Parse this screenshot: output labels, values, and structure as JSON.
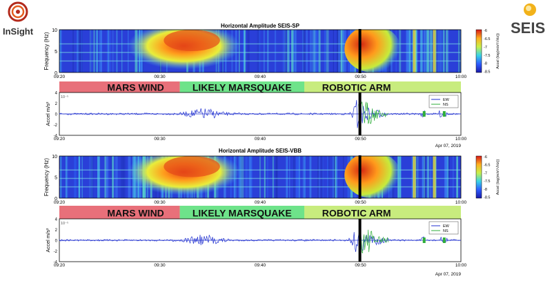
{
  "logos": {
    "insight": "InSight",
    "seis": "SEIS"
  },
  "figures": [
    {
      "spectrogram_title": "Horizontal Amplitude SEIS-SP",
      "ylabel": "Frequency (Hz)",
      "colorbar_label": "Accel (log(m/s²/√Hz))",
      "colorbar_ticks": [
        "-6",
        "-6.5",
        "-7",
        "-7.5",
        "-8",
        "-8.5"
      ],
      "date": "Apr 07, 2019",
      "trace_ylabel": "Accel m/s²",
      "trace_scale": "10⁻⁵"
    },
    {
      "spectrogram_title": "Horizontal Amplitude SEIS-VBB",
      "ylabel": "Frequency (Hz)",
      "colorbar_label": "Accel (log(m/s²/√Hz))",
      "colorbar_ticks": [
        "-6",
        "-6.5",
        "-7",
        "-7.5",
        "-8",
        "-8.5"
      ],
      "date": "Apr 07, 2019",
      "trace_ylabel": "Accel m/s²",
      "trace_scale": "10⁻⁵"
    }
  ],
  "labels": {
    "mars_wind": "MARS WIND",
    "likely_marsquake": "LIKELY MARSQUAKE",
    "robotic_arm": "ROBOTIC ARM",
    "mars_wind_color": "#e8707a",
    "marsquake_color": "#6ee38a",
    "robotic_arm_color": "#c8ec7e"
  },
  "legend": [
    "EW",
    "NS"
  ],
  "chart_data": [
    {
      "type": "heatmap",
      "title": "Horizontal Amplitude SEIS-SP",
      "xlabel": "",
      "ylabel": "Frequency (Hz)",
      "x_ticks": [
        "09:20",
        "09:30",
        "09:40",
        "09:50",
        "10:00"
      ],
      "y_ticks": [
        0,
        5,
        10
      ],
      "ylim": [
        0,
        10
      ],
      "colorbar": {
        "label": "Accel (log(m/s²/√Hz))",
        "range": [
          -8.5,
          -6
        ]
      },
      "events": [
        {
          "name": "MARS WIND",
          "start": "09:20",
          "end": "09:32"
        },
        {
          "name": "LIKELY MARSQUAKE",
          "start": "09:32",
          "end": "09:45"
        },
        {
          "name": "ROBOTIC ARM",
          "start": "09:45",
          "end": "10:00"
        }
      ]
    },
    {
      "type": "line",
      "title": "",
      "ylabel": "Accel m/s²",
      "x_ticks": [
        "09:20",
        "09:30",
        "09:40",
        "09:50",
        "10:00"
      ],
      "y_ticks": [
        -4,
        -2,
        0,
        2,
        4
      ],
      "ylim": [
        -4,
        4
      ],
      "y_scale_note": "10⁻⁵",
      "series": [
        {
          "name": "EW"
        },
        {
          "name": "NS"
        }
      ]
    },
    {
      "type": "heatmap",
      "title": "Horizontal Amplitude SEIS-VBB",
      "xlabel": "",
      "ylabel": "Frequency (Hz)",
      "x_ticks": [
        "09:20",
        "09:30",
        "09:40",
        "09:50",
        "10:00"
      ],
      "y_ticks": [
        0,
        5,
        10
      ],
      "ylim": [
        0,
        10
      ],
      "colorbar": {
        "label": "Accel (log(m/s²/√Hz))",
        "range": [
          -8.5,
          -6
        ]
      },
      "events": [
        {
          "name": "MARS WIND",
          "start": "09:20",
          "end": "09:32"
        },
        {
          "name": "LIKELY MARSQUAKE",
          "start": "09:32",
          "end": "09:45"
        },
        {
          "name": "ROBOTIC ARM",
          "start": "09:45",
          "end": "10:00"
        }
      ]
    },
    {
      "type": "line",
      "title": "",
      "ylabel": "Accel m/s²",
      "x_ticks": [
        "09:20",
        "09:30",
        "09:40",
        "09:50",
        "10:00"
      ],
      "y_ticks": [
        -4,
        -2,
        0,
        2,
        4
      ],
      "ylim": [
        -4,
        4
      ],
      "y_scale_note": "10⁻⁵",
      "series": [
        {
          "name": "EW"
        },
        {
          "name": "NS"
        }
      ]
    }
  ]
}
